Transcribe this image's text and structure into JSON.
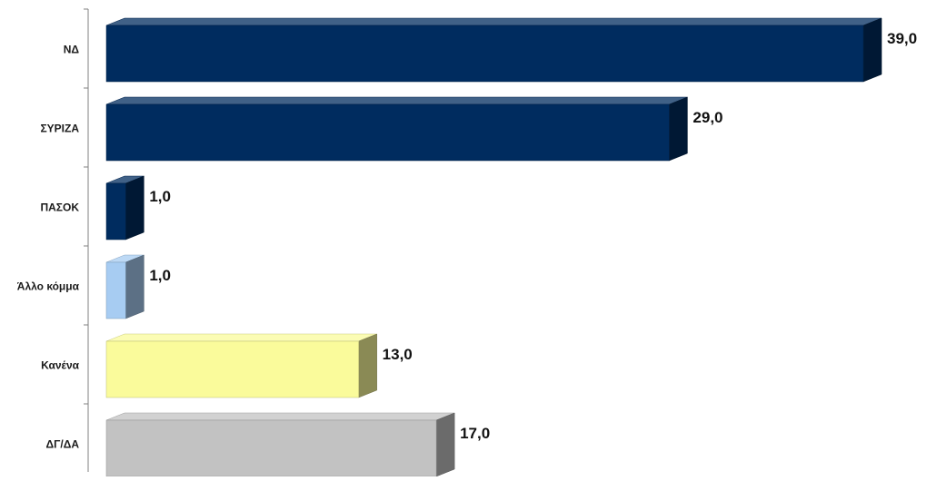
{
  "chart_data": {
    "type": "bar",
    "orientation": "horizontal",
    "style": "3d",
    "grid": false,
    "legend": "none",
    "xlim": [
      0,
      39
    ],
    "categories": [
      "ΝΔ",
      "ΣΥΡΙΖΑ",
      "ΠΑΣΟΚ",
      "Άλλο κόμμα",
      "Κανένα",
      "ΔΓ/ΔΑ"
    ],
    "values": [
      39.0,
      29.0,
      1.0,
      1.0,
      13.0,
      17.0
    ],
    "value_labels": [
      "39,0",
      "29,0",
      "1,0",
      "1,0",
      "13,0",
      "17,0"
    ],
    "bar_colors": [
      "#002c5f",
      "#002c5f",
      "#002c5f",
      "#a7ccf2",
      "#fafb9b",
      "#c2c2c2"
    ]
  }
}
